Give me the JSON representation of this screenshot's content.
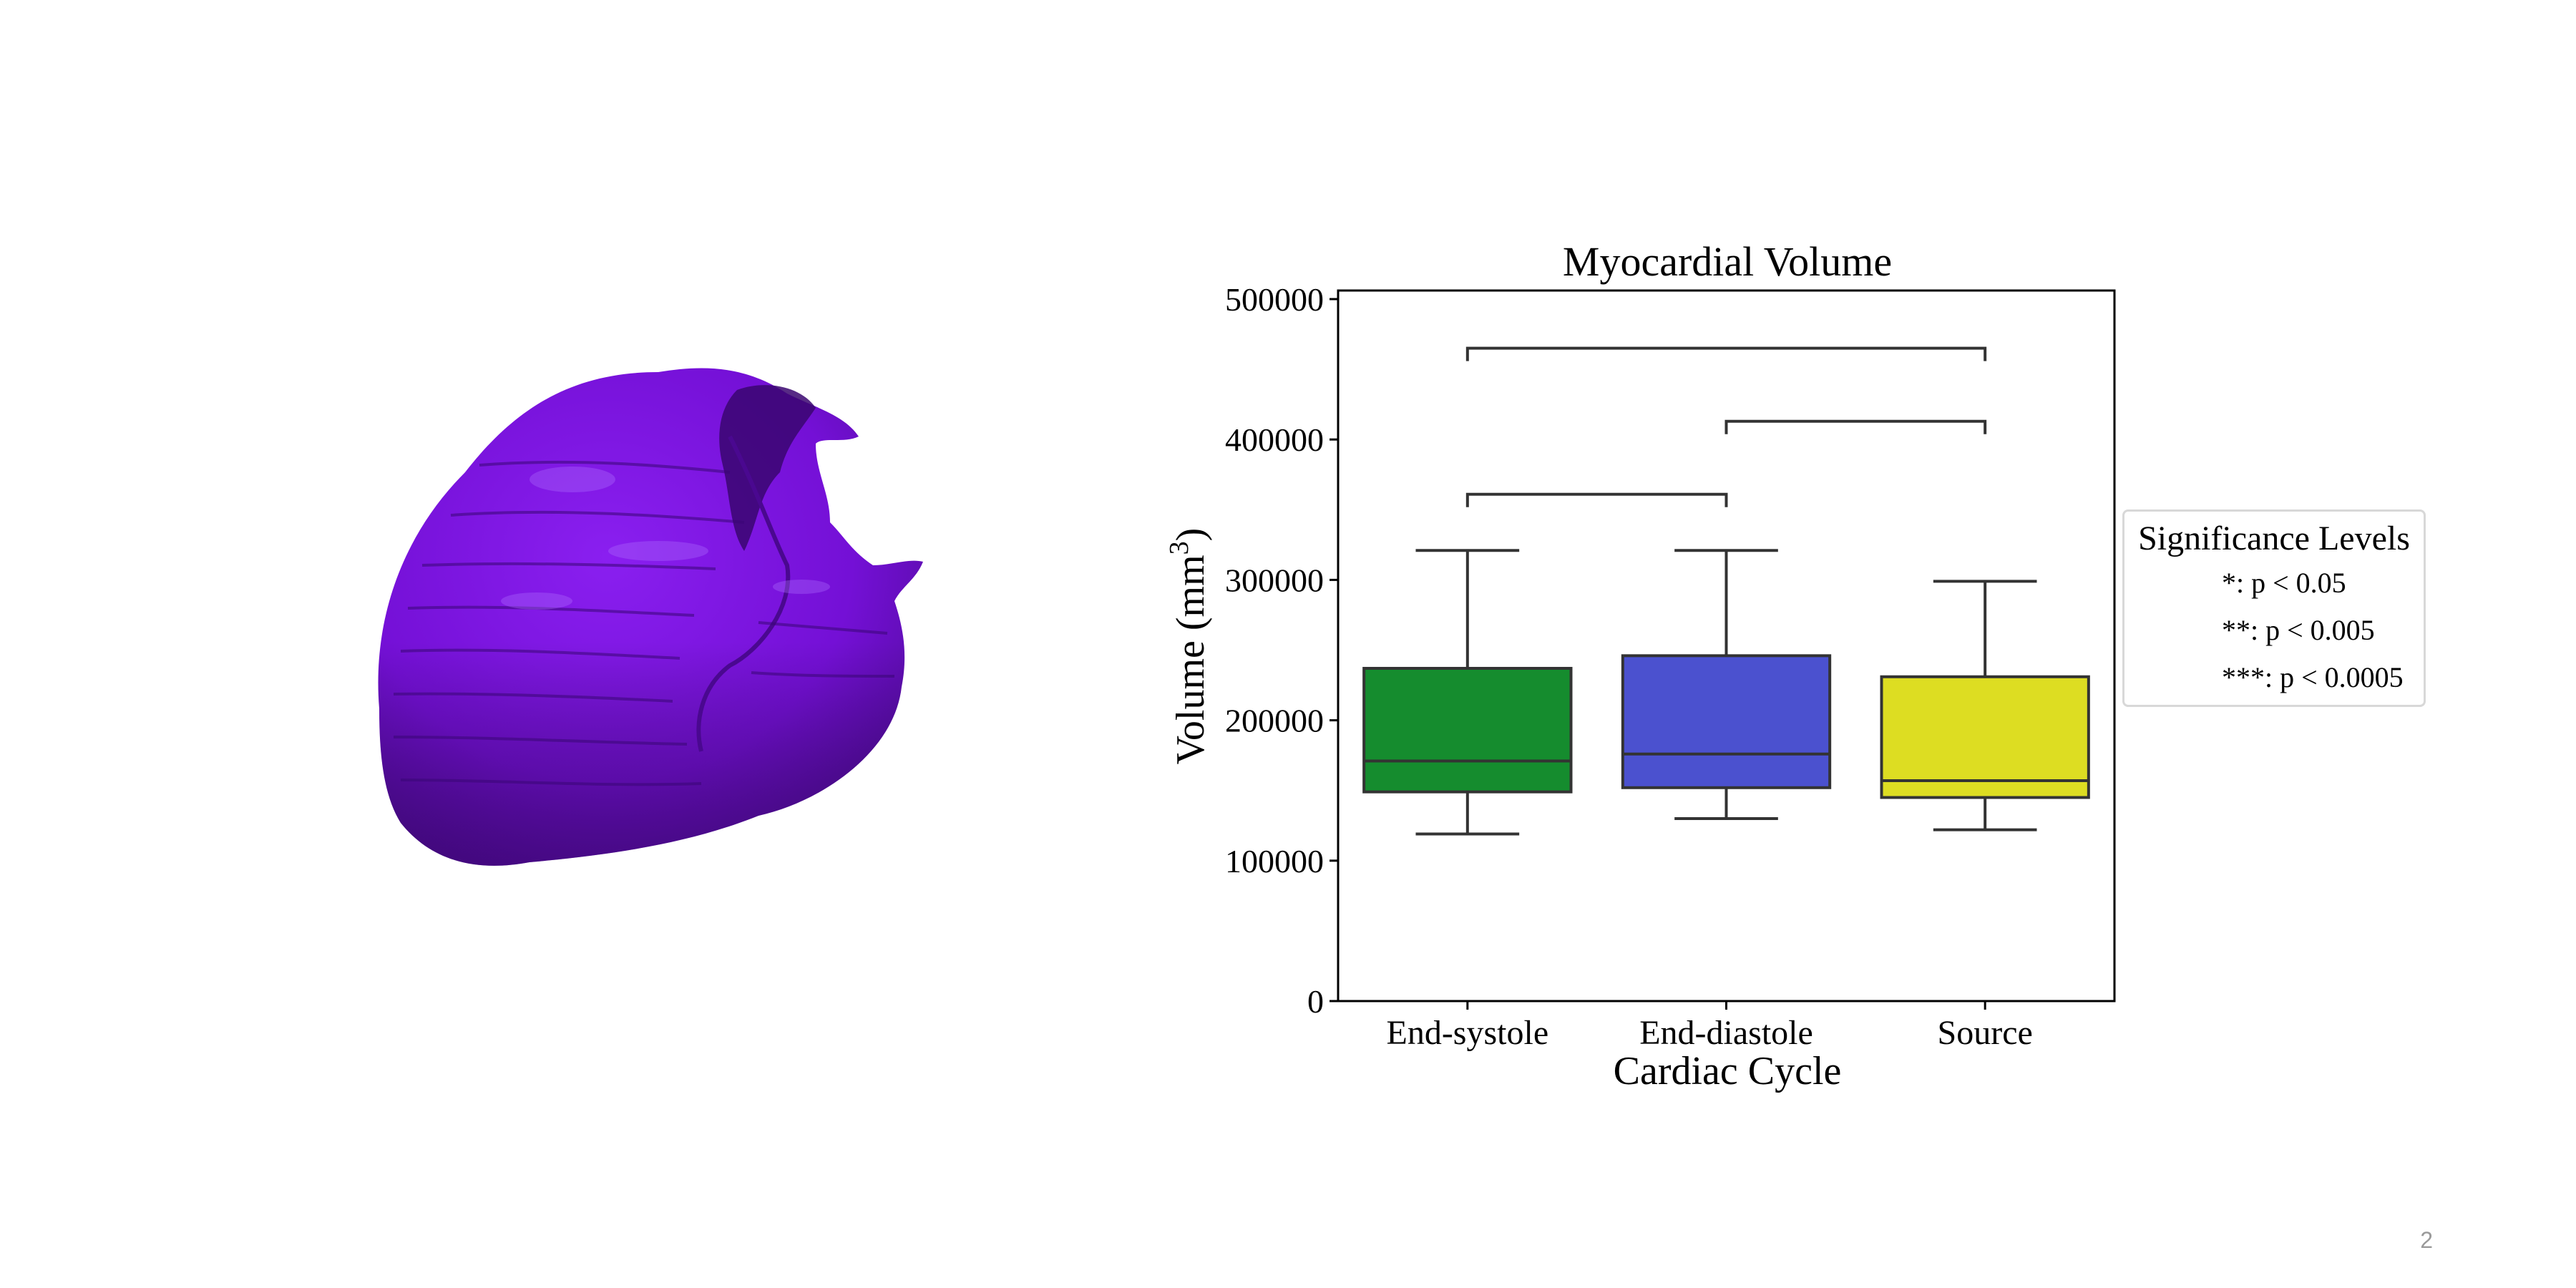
{
  "slide": {
    "page_number": "2"
  },
  "figure": {
    "mesh_label": "myocardium 3D surface mesh",
    "mesh_color": "#7a10dc"
  },
  "chart_data": {
    "type": "box",
    "title": "Myocardial Volume",
    "xlabel": "Cardiac Cycle",
    "ylabel": "Volume (mm",
    "ylabel_superscript": "3",
    "ylabel_suffix": ")",
    "ylim": [
      0,
      505000
    ],
    "yticks": [
      0,
      100000,
      200000,
      300000,
      400000,
      500000
    ],
    "ytick_labels": [
      "0",
      "100000",
      "200000",
      "300000",
      "400000",
      "500000"
    ],
    "categories": [
      "End-systole",
      "End-diastole",
      "Source"
    ],
    "boxes": [
      {
        "name": "End-systole",
        "whisker_low": 119000,
        "q1": 149000,
        "median": 171000,
        "q3": 237000,
        "whisker_high": 321000,
        "color": "#158c2e"
      },
      {
        "name": "End-diastole",
        "whisker_low": 130000,
        "q1": 152000,
        "median": 176000,
        "q3": 246000,
        "whisker_high": 321000,
        "color": "#4b51cf"
      },
      {
        "name": "Source",
        "whisker_low": 122000,
        "q1": 145000,
        "median": 157000,
        "q3": 231000,
        "whisker_high": 299000,
        "color": "#dddd22"
      }
    ],
    "significance_brackets": [
      {
        "from": "End-systole",
        "to": "End-diastole",
        "level": 361000,
        "label": ""
      },
      {
        "from": "End-diastole",
        "to": "Source",
        "level": 413000,
        "label": ""
      },
      {
        "from": "End-systole",
        "to": "Source",
        "level": 465000,
        "label": ""
      }
    ],
    "legend": {
      "title": "Significance Levels",
      "placement": "right",
      "entries": [
        "*: p < 0.05",
        "**: p < 0.005",
        "***: p < 0.0005"
      ]
    }
  }
}
